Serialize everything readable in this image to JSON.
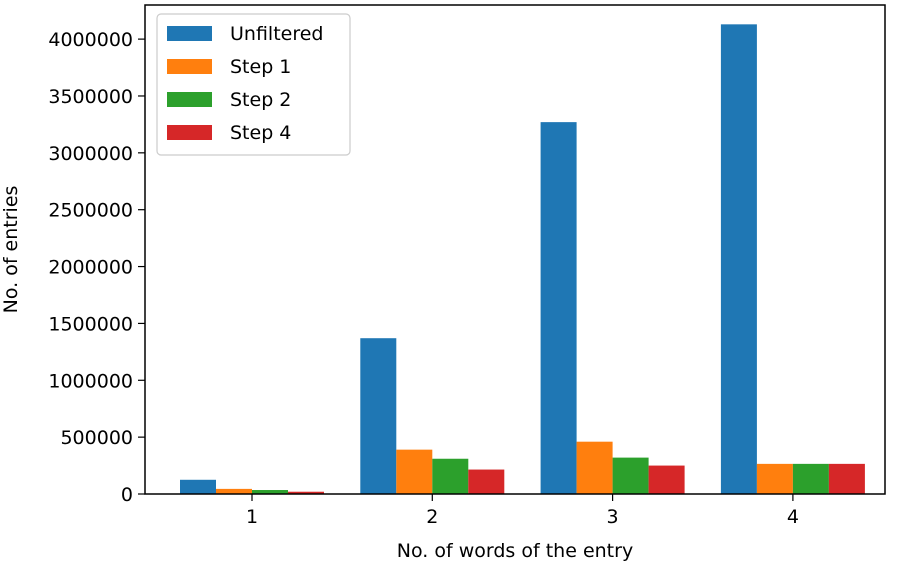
{
  "chart_data": {
    "type": "bar",
    "title": "",
    "xlabel": "No. of words of the entry",
    "ylabel": "No. of entries",
    "categories": [
      "1",
      "2",
      "3",
      "4"
    ],
    "series": [
      {
        "name": "Unfiltered",
        "color": "#1f77b4",
        "values": [
          125000,
          1370000,
          3270000,
          4130000
        ]
      },
      {
        "name": "Step 1",
        "color": "#ff7f0e",
        "values": [
          45000,
          390000,
          460000,
          265000
        ]
      },
      {
        "name": "Step 2",
        "color": "#2ca02c",
        "values": [
          35000,
          310000,
          320000,
          265000
        ]
      },
      {
        "name": "Step 4",
        "color": "#d62728",
        "values": [
          20000,
          215000,
          250000,
          265000
        ]
      }
    ],
    "ylim": [
      0,
      4300000
    ],
    "yticks": [
      "0",
      "500000",
      "1000000",
      "1500000",
      "2000000",
      "2500000",
      "3000000",
      "3500000",
      "4000000"
    ],
    "ytick_values": [
      0,
      500000,
      1000000,
      1500000,
      2000000,
      2500000,
      3000000,
      3500000,
      4000000
    ],
    "legend_position": "top-left",
    "grid": false
  }
}
